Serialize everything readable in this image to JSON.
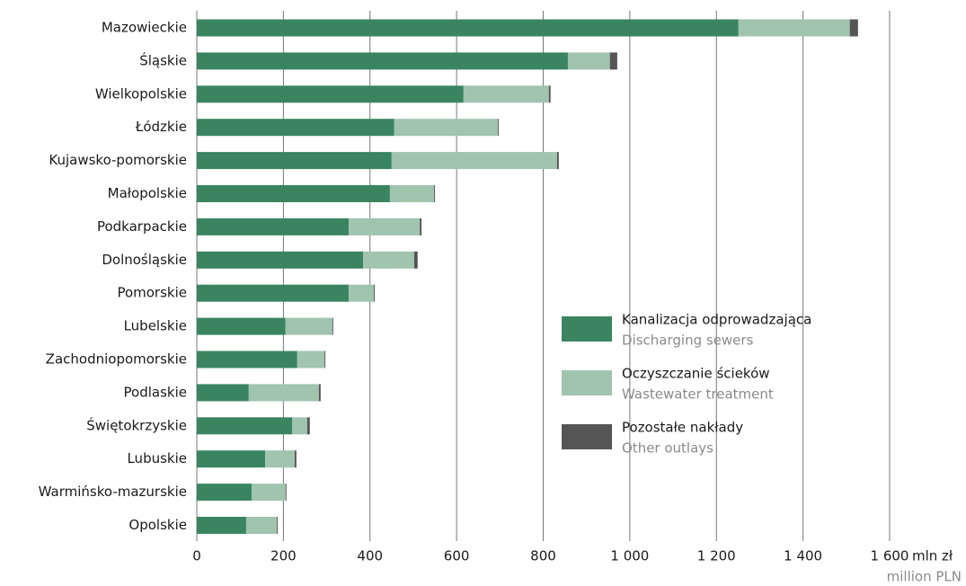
{
  "chart_data": {
    "type": "stacked-barh",
    "categories": [
      "Mazowieckie",
      "Śląskie",
      "Wielkopolskie",
      "Łódzkie",
      "Kujawsko-pomorskie",
      "Małopolskie",
      "Podkarpackie",
      "Dolnośląskie",
      "Pomorskie",
      "Lubelskie",
      "Zachodniopomorskie",
      "Podlaskie",
      "Świętokrzyskie",
      "Lubuskie",
      "Warmińsko-mazurskie",
      "Opolskie"
    ],
    "series": [
      {
        "name": "Kanalizacja odprowadzająca",
        "name_en": "Discharging sewers",
        "color": "#3a8560",
        "values": [
          1251,
          857,
          616,
          456,
          450,
          446,
          351,
          384,
          351,
          205,
          232,
          120,
          220,
          158,
          127,
          114
        ]
      },
      {
        "name": "Oczyszczanie ścieków",
        "name_en": "Wastewater treatment",
        "color": "#a0c4ae",
        "values": [
          257,
          97,
          197,
          239,
          382,
          102,
          164,
          118,
          58,
          108,
          63,
          162,
          35,
          68,
          78,
          71
        ]
      },
      {
        "name": "Pozostałe nakłady",
        "name_en": "Other outlays",
        "color": "#555555",
        "values": [
          19,
          17,
          4,
          2,
          4,
          2,
          4,
          8,
          2,
          2,
          2,
          4,
          6,
          4,
          2,
          2
        ]
      }
    ],
    "xlim": [
      0,
      1600
    ],
    "xticks": [
      0,
      200,
      400,
      600,
      800,
      {
        "value": 1000,
        "label": "1 000"
      },
      {
        "value": 1200,
        "label": "1 200"
      },
      {
        "value": 1400,
        "label": "1 400"
      },
      {
        "value": 1600,
        "label": "1 600"
      }
    ],
    "x_unit": "mln zł",
    "x_unit_en": "million PLN",
    "grid": true
  }
}
